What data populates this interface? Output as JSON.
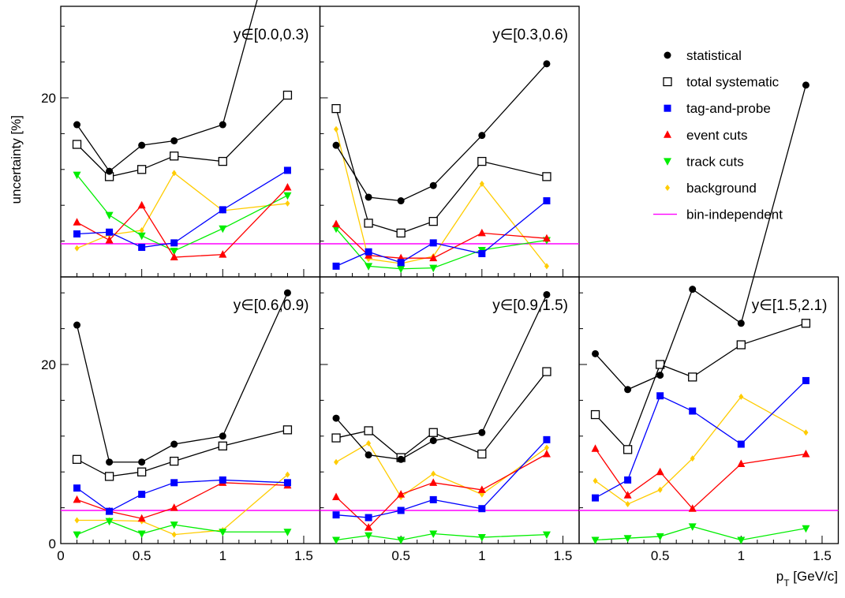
{
  "ylabel": "uncertainty  [%]",
  "xlabel_main": "p",
  "xlabel_sub": "T",
  "xlabel_unit": " [GeV/c]",
  "y_ticks": [
    0,
    20,
    40,
    60
  ],
  "x_ticks": [
    0,
    0.5,
    1,
    1.5
  ],
  "x_tick_labels": [
    "0",
    "0.5",
    "1",
    "1.5"
  ],
  "legend": [
    {
      "key": "statistical",
      "label": "statistical",
      "marker": "filled-circle",
      "color": "#000000"
    },
    {
      "key": "total_systematic",
      "label": "total systematic",
      "marker": "open-square",
      "color": "#000000"
    },
    {
      "key": "tag_and_probe",
      "label": "tag-and-probe",
      "marker": "filled-square",
      "color": "#0000ff"
    },
    {
      "key": "event_cuts",
      "label": "event cuts",
      "marker": "triangle-up",
      "color": "#ff0000"
    },
    {
      "key": "track_cuts",
      "label": "track cuts",
      "marker": "triangle-down",
      "color": "#00ee00"
    },
    {
      "key": "background",
      "label": "background",
      "marker": "diamond",
      "color": "#ffcc00"
    },
    {
      "key": "bin_independent",
      "label": "bin-independent",
      "marker": "line",
      "color": "#ff00ff"
    }
  ],
  "chart_data": [
    {
      "type": "line",
      "label": "y∈[0.0,0.3)",
      "xlim": [
        0,
        1.6
      ],
      "ylim": [
        0,
        60
      ],
      "x": [
        0.1,
        0.3,
        0.5,
        0.7,
        1.0,
        1.4
      ],
      "bin_independent": 3.7,
      "series": [
        {
          "name": "statistical",
          "values": [
            17.0,
            11.8,
            14.7,
            15.2,
            17.0,
            43.2
          ]
        },
        {
          "name": "total systematic",
          "values": [
            14.8,
            11.2,
            12.0,
            13.5,
            12.9,
            20.3
          ]
        },
        {
          "name": "tag-and-probe",
          "values": [
            4.8,
            5.0,
            3.3,
            3.8,
            7.5,
            11.9
          ]
        },
        {
          "name": "event cuts",
          "values": [
            6.1,
            4.1,
            8.0,
            2.2,
            2.5,
            10.0
          ]
        },
        {
          "name": "track cuts",
          "values": [
            11.4,
            6.9,
            4.6,
            2.9,
            5.4,
            9.1
          ]
        },
        {
          "name": "background",
          "values": [
            3.2,
            4.7,
            5.2,
            11.6,
            7.4,
            8.2
          ]
        }
      ]
    },
    {
      "type": "line",
      "label": "y∈[0.3,0.6)",
      "xlim": [
        0,
        1.6
      ],
      "ylim": [
        0,
        60
      ],
      "x": [
        0.1,
        0.3,
        0.5,
        0.7,
        1.0,
        1.4
      ],
      "bin_independent": 3.7,
      "series": [
        {
          "name": "statistical",
          "values": [
            14.7,
            8.9,
            8.5,
            10.2,
            15.8,
            23.8
          ]
        },
        {
          "name": "total systematic",
          "values": [
            18.8,
            6.0,
            4.9,
            6.2,
            12.9,
            11.2
          ]
        },
        {
          "name": "tag-and-probe",
          "values": [
            1.2,
            2.8,
            1.6,
            3.8,
            2.6,
            8.5
          ]
        },
        {
          "name": "event cuts",
          "values": [
            5.9,
            2.4,
            2.1,
            2.1,
            4.9,
            4.3
          ]
        },
        {
          "name": "track cuts",
          "values": [
            5.4,
            1.2,
            0.9,
            1.0,
            3.0,
            4.1
          ]
        },
        {
          "name": "background",
          "values": [
            16.5,
            2.0,
            1.5,
            2.3,
            10.4,
            1.2
          ]
        }
      ]
    },
    {
      "type": "line",
      "label": "y∈[0.6,0.9)",
      "xlim": [
        0,
        1.6
      ],
      "ylim": [
        0,
        60
      ],
      "x": [
        0.1,
        0.3,
        0.5,
        0.7,
        1.0,
        1.4
      ],
      "bin_independent": 3.7,
      "series": [
        {
          "name": "statistical",
          "values": [
            24.4,
            9.1,
            9.1,
            11.1,
            12.0,
            28.0
          ]
        },
        {
          "name": "total systematic",
          "values": [
            9.4,
            7.5,
            8.0,
            9.2,
            10.9,
            12.7
          ]
        },
        {
          "name": "tag-and-probe",
          "values": [
            6.2,
            3.6,
            5.5,
            6.8,
            7.1,
            6.8
          ]
        },
        {
          "name": "event cuts",
          "values": [
            4.9,
            3.6,
            2.8,
            4.0,
            6.8,
            6.5
          ]
        },
        {
          "name": "track cuts",
          "values": [
            1.0,
            2.5,
            1.1,
            2.1,
            1.3,
            1.3
          ]
        },
        {
          "name": "background",
          "values": [
            2.6,
            2.6,
            2.5,
            1.0,
            1.5,
            7.7
          ]
        }
      ]
    },
    {
      "type": "line",
      "label": "y∈[0.9,1.5)",
      "xlim": [
        0,
        1.6
      ],
      "ylim": [
        0,
        60
      ],
      "x": [
        0.1,
        0.3,
        0.5,
        0.7,
        1.0,
        1.4
      ],
      "bin_independent": 3.7,
      "series": [
        {
          "name": "statistical",
          "values": [
            14.0,
            9.9,
            9.4,
            11.5,
            12.4,
            27.8
          ]
        },
        {
          "name": "total systematic",
          "values": [
            11.8,
            12.6,
            9.6,
            12.4,
            10.0,
            19.2
          ]
        },
        {
          "name": "tag-and-probe",
          "values": [
            3.2,
            2.9,
            3.7,
            4.9,
            3.9,
            11.6
          ]
        },
        {
          "name": "event cuts",
          "values": [
            5.2,
            1.8,
            5.5,
            6.8,
            6.0,
            10.0
          ]
        },
        {
          "name": "track cuts",
          "values": [
            0.4,
            0.9,
            0.4,
            1.1,
            0.7,
            1.0
          ]
        },
        {
          "name": "background",
          "values": [
            9.1,
            11.2,
            5.2,
            7.8,
            5.5,
            10.7
          ]
        }
      ]
    },
    {
      "type": "line",
      "label": "y∈[1.5,2.1)",
      "xlim": [
        0,
        1.6
      ],
      "ylim": [
        0,
        60
      ],
      "x": [
        0.1,
        0.3,
        0.5,
        0.7,
        1.0,
        1.4
      ],
      "bin_independent": 3.7,
      "series": [
        {
          "name": "statistical",
          "values": [
            21.2,
            17.2,
            18.8,
            28.4,
            24.6,
            51.2
          ]
        },
        {
          "name": "total systematic",
          "values": [
            14.4,
            10.5,
            20.0,
            18.6,
            22.2,
            24.6
          ]
        },
        {
          "name": "tag-and-probe",
          "values": [
            5.1,
            7.1,
            16.5,
            14.8,
            11.1,
            18.2
          ]
        },
        {
          "name": "event cuts",
          "values": [
            10.6,
            5.4,
            8.0,
            3.9,
            8.9,
            10.0
          ]
        },
        {
          "name": "track cuts",
          "values": [
            0.4,
            0.6,
            0.8,
            1.9,
            0.4,
            1.7
          ]
        },
        {
          "name": "background",
          "values": [
            7.0,
            4.4,
            6.0,
            9.5,
            16.4,
            12.4
          ]
        }
      ]
    }
  ]
}
